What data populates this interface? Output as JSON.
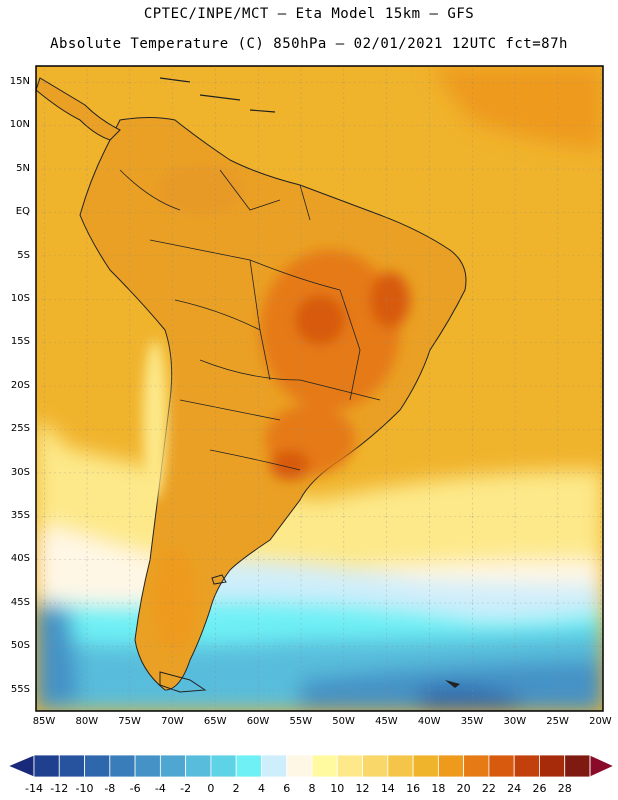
{
  "header": {
    "line1": "CPTEC/INPE/MCT –  Eta Model 15km – GFS",
    "line2": "Absolute Temperature (C) 850hPa – 02/01/2021 12UTC fct=87h"
  },
  "axes": {
    "lat_ticks": [
      "15N",
      "10N",
      "5N",
      "EQ",
      "5S",
      "10S",
      "15S",
      "20S",
      "25S",
      "30S",
      "35S",
      "40S",
      "45S",
      "50S",
      "55S"
    ],
    "lon_ticks": [
      "85W",
      "80W",
      "75W",
      "70W",
      "65W",
      "60W",
      "55W",
      "50W",
      "45W",
      "40W",
      "35W",
      "30W",
      "25W",
      "20W"
    ]
  },
  "colorbar": {
    "labels": [
      "-14",
      "-12",
      "-10",
      "-8",
      "-6",
      "-4",
      "-2",
      "0",
      "2",
      "4",
      "6",
      "8",
      "10",
      "12",
      "14",
      "16",
      "18",
      "20",
      "22",
      "24",
      "26",
      "28"
    ],
    "colors": [
      "#1f3f8f",
      "#27529e",
      "#2f67ad",
      "#3a7dbb",
      "#4592c6",
      "#4ea6d1",
      "#58bddc",
      "#5fd3e6",
      "#6ef0f5",
      "#cfeefb",
      "#fff7e6",
      "#fffaa0",
      "#fde98a",
      "#f9d768",
      "#f4c548",
      "#f0b32c",
      "#ee9a1c",
      "#e67a14",
      "#d85a0e",
      "#c2400b",
      "#a52b0a",
      "#7f1a10"
    ],
    "under_color": "#1a2a7a",
    "over_color": "#8a0a2a"
  },
  "map": {
    "ocean_color": "#f0b32c",
    "land_color": "#eaa024",
    "hot_color": "#d8701a",
    "cold_sea_colors": [
      "#fff7e6",
      "#cfeefb",
      "#6ef0f5",
      "#58bddc",
      "#4592c6",
      "#2f67ad"
    ]
  }
}
